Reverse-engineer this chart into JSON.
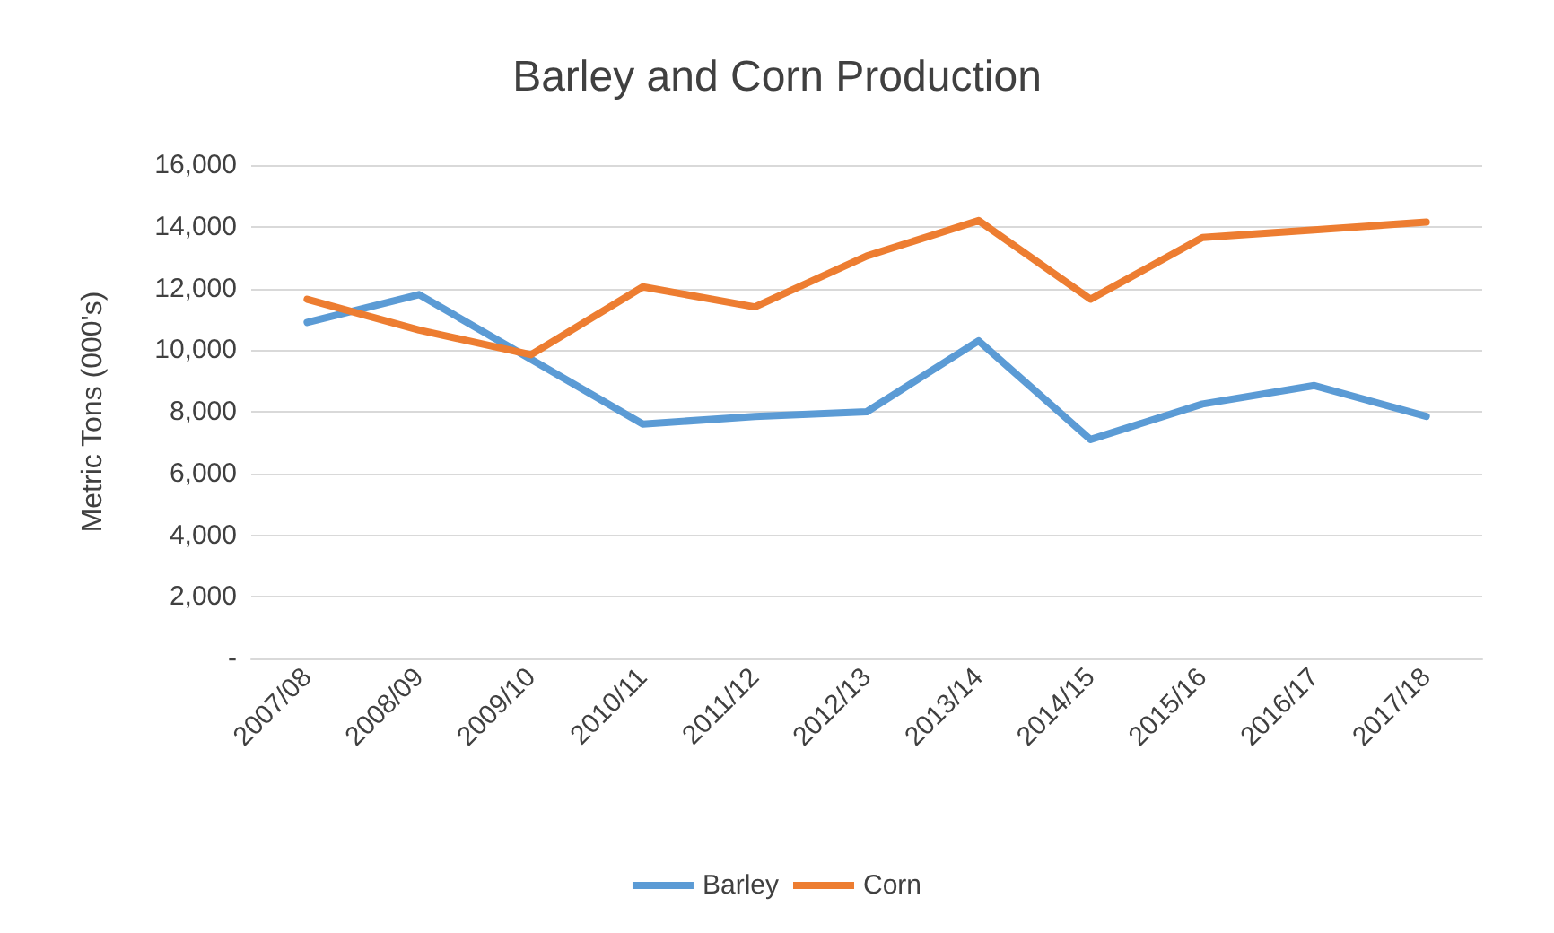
{
  "chart_data": {
    "type": "line",
    "title": "Barley and Corn Production",
    "ylabel": "Metric Tons (000's)",
    "categories": [
      "2007/08",
      "2008/09",
      "2009/10",
      "2010/11",
      "2011/12",
      "2012/13",
      "2013/14",
      "2014/15",
      "2015/16",
      "2016/17",
      "2017/18"
    ],
    "series": [
      {
        "name": "Barley",
        "color": "#5b9bd5",
        "values": [
          10900,
          11800,
          9700,
          7600,
          7850,
          8000,
          10300,
          7100,
          8250,
          8850,
          7850
        ]
      },
      {
        "name": "Corn",
        "color": "#ed7d31",
        "values": [
          11650,
          10650,
          9850,
          12050,
          11400,
          13050,
          14200,
          11650,
          13650,
          13900,
          14150
        ]
      }
    ],
    "ylim": [
      0,
      16000
    ],
    "yticks": [
      {
        "value": 0,
        "label": "-"
      },
      {
        "value": 2000,
        "label": "2,000"
      },
      {
        "value": 4000,
        "label": "4,000"
      },
      {
        "value": 6000,
        "label": "6,000"
      },
      {
        "value": 8000,
        "label": "8,000"
      },
      {
        "value": 10000,
        "label": "10,000"
      },
      {
        "value": 12000,
        "label": "12,000"
      },
      {
        "value": 14000,
        "label": "14,000"
      },
      {
        "value": 16000,
        "label": "16,000"
      }
    ],
    "grid": "y",
    "legend": "bottom",
    "marker": "none",
    "line_style": "solid"
  }
}
